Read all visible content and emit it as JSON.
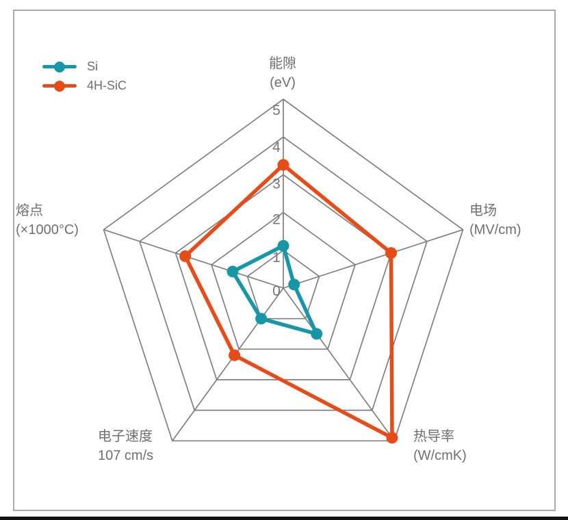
{
  "chart_data": {
    "type": "radar",
    "max": 5,
    "rings": [
      0,
      1,
      2,
      3,
      4,
      5
    ],
    "axes": [
      {
        "label": "能隙",
        "unit": "(eV)"
      },
      {
        "label": "电场",
        "unit": "(MV/cm)"
      },
      {
        "label": "热导率",
        "unit": "(W/cmK)"
      },
      {
        "label": "电子速度",
        "unit": "107 cm/s"
      },
      {
        "label": "熔点",
        "unit": "(×1000°C)"
      }
    ],
    "series": [
      {
        "name": "Si",
        "color": "#1696a6",
        "values": [
          1.12,
          0.3,
          1.5,
          1.0,
          1.41
        ]
      },
      {
        "name": "4H-SiC",
        "color": "#e74b17",
        "values": [
          3.26,
          3.0,
          4.9,
          2.2,
          2.73
        ]
      }
    ],
    "grid_color": "#7f7f7f",
    "tick_color": "#757575",
    "label_color": "#6f6f6f",
    "legend_position": "top-left",
    "grid": "on"
  }
}
